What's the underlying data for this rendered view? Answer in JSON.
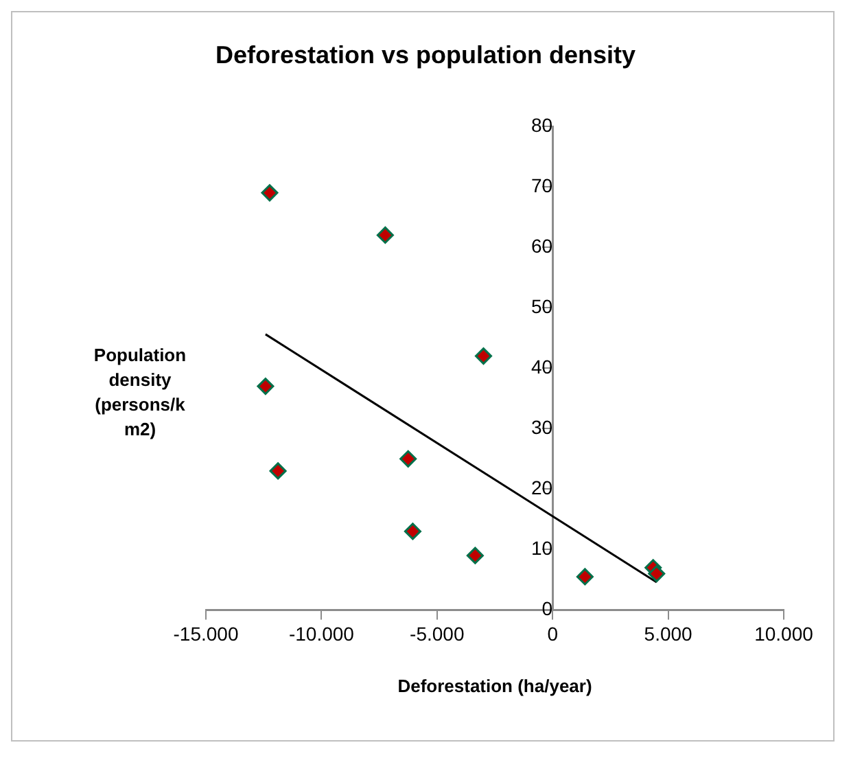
{
  "chart_data": {
    "type": "scatter",
    "title": "Deforestation vs population  density",
    "xlabel": "Deforestation (ha/year)",
    "ylabel": "Population density (persons/km2)",
    "series": [
      {
        "type": "scatter",
        "color": "#c00000",
        "marker": "diamond",
        "x": [
          -12240,
          -7240,
          -2990,
          -12420,
          -6250,
          -11880,
          -6050,
          -3350,
          1400,
          4350,
          4500
        ],
        "values": [
          69,
          62,
          42,
          37,
          25,
          23,
          13,
          9,
          5.5,
          7,
          6
        ]
      },
      {
        "type": "line",
        "color": "#000000",
        "marker": "none",
        "x": [
          -12420,
          4500
        ],
        "values": [
          45.6,
          4.6
        ]
      }
    ],
    "xlim": [
      -15000,
      10000
    ],
    "xticks": [
      {
        "value": -15000,
        "label": "-15.000"
      },
      {
        "value": -10000,
        "label": "-10.000"
      },
      {
        "value": -5000,
        "label": "-5.000"
      },
      0,
      {
        "value": 5000,
        "label": "5.000"
      },
      {
        "value": 10000,
        "label": "10.000"
      }
    ],
    "ylim": [
      0,
      80
    ],
    "yticks": [
      0,
      10,
      20,
      30,
      40,
      50,
      60,
      70,
      80
    ],
    "grid": false,
    "legend": false
  }
}
